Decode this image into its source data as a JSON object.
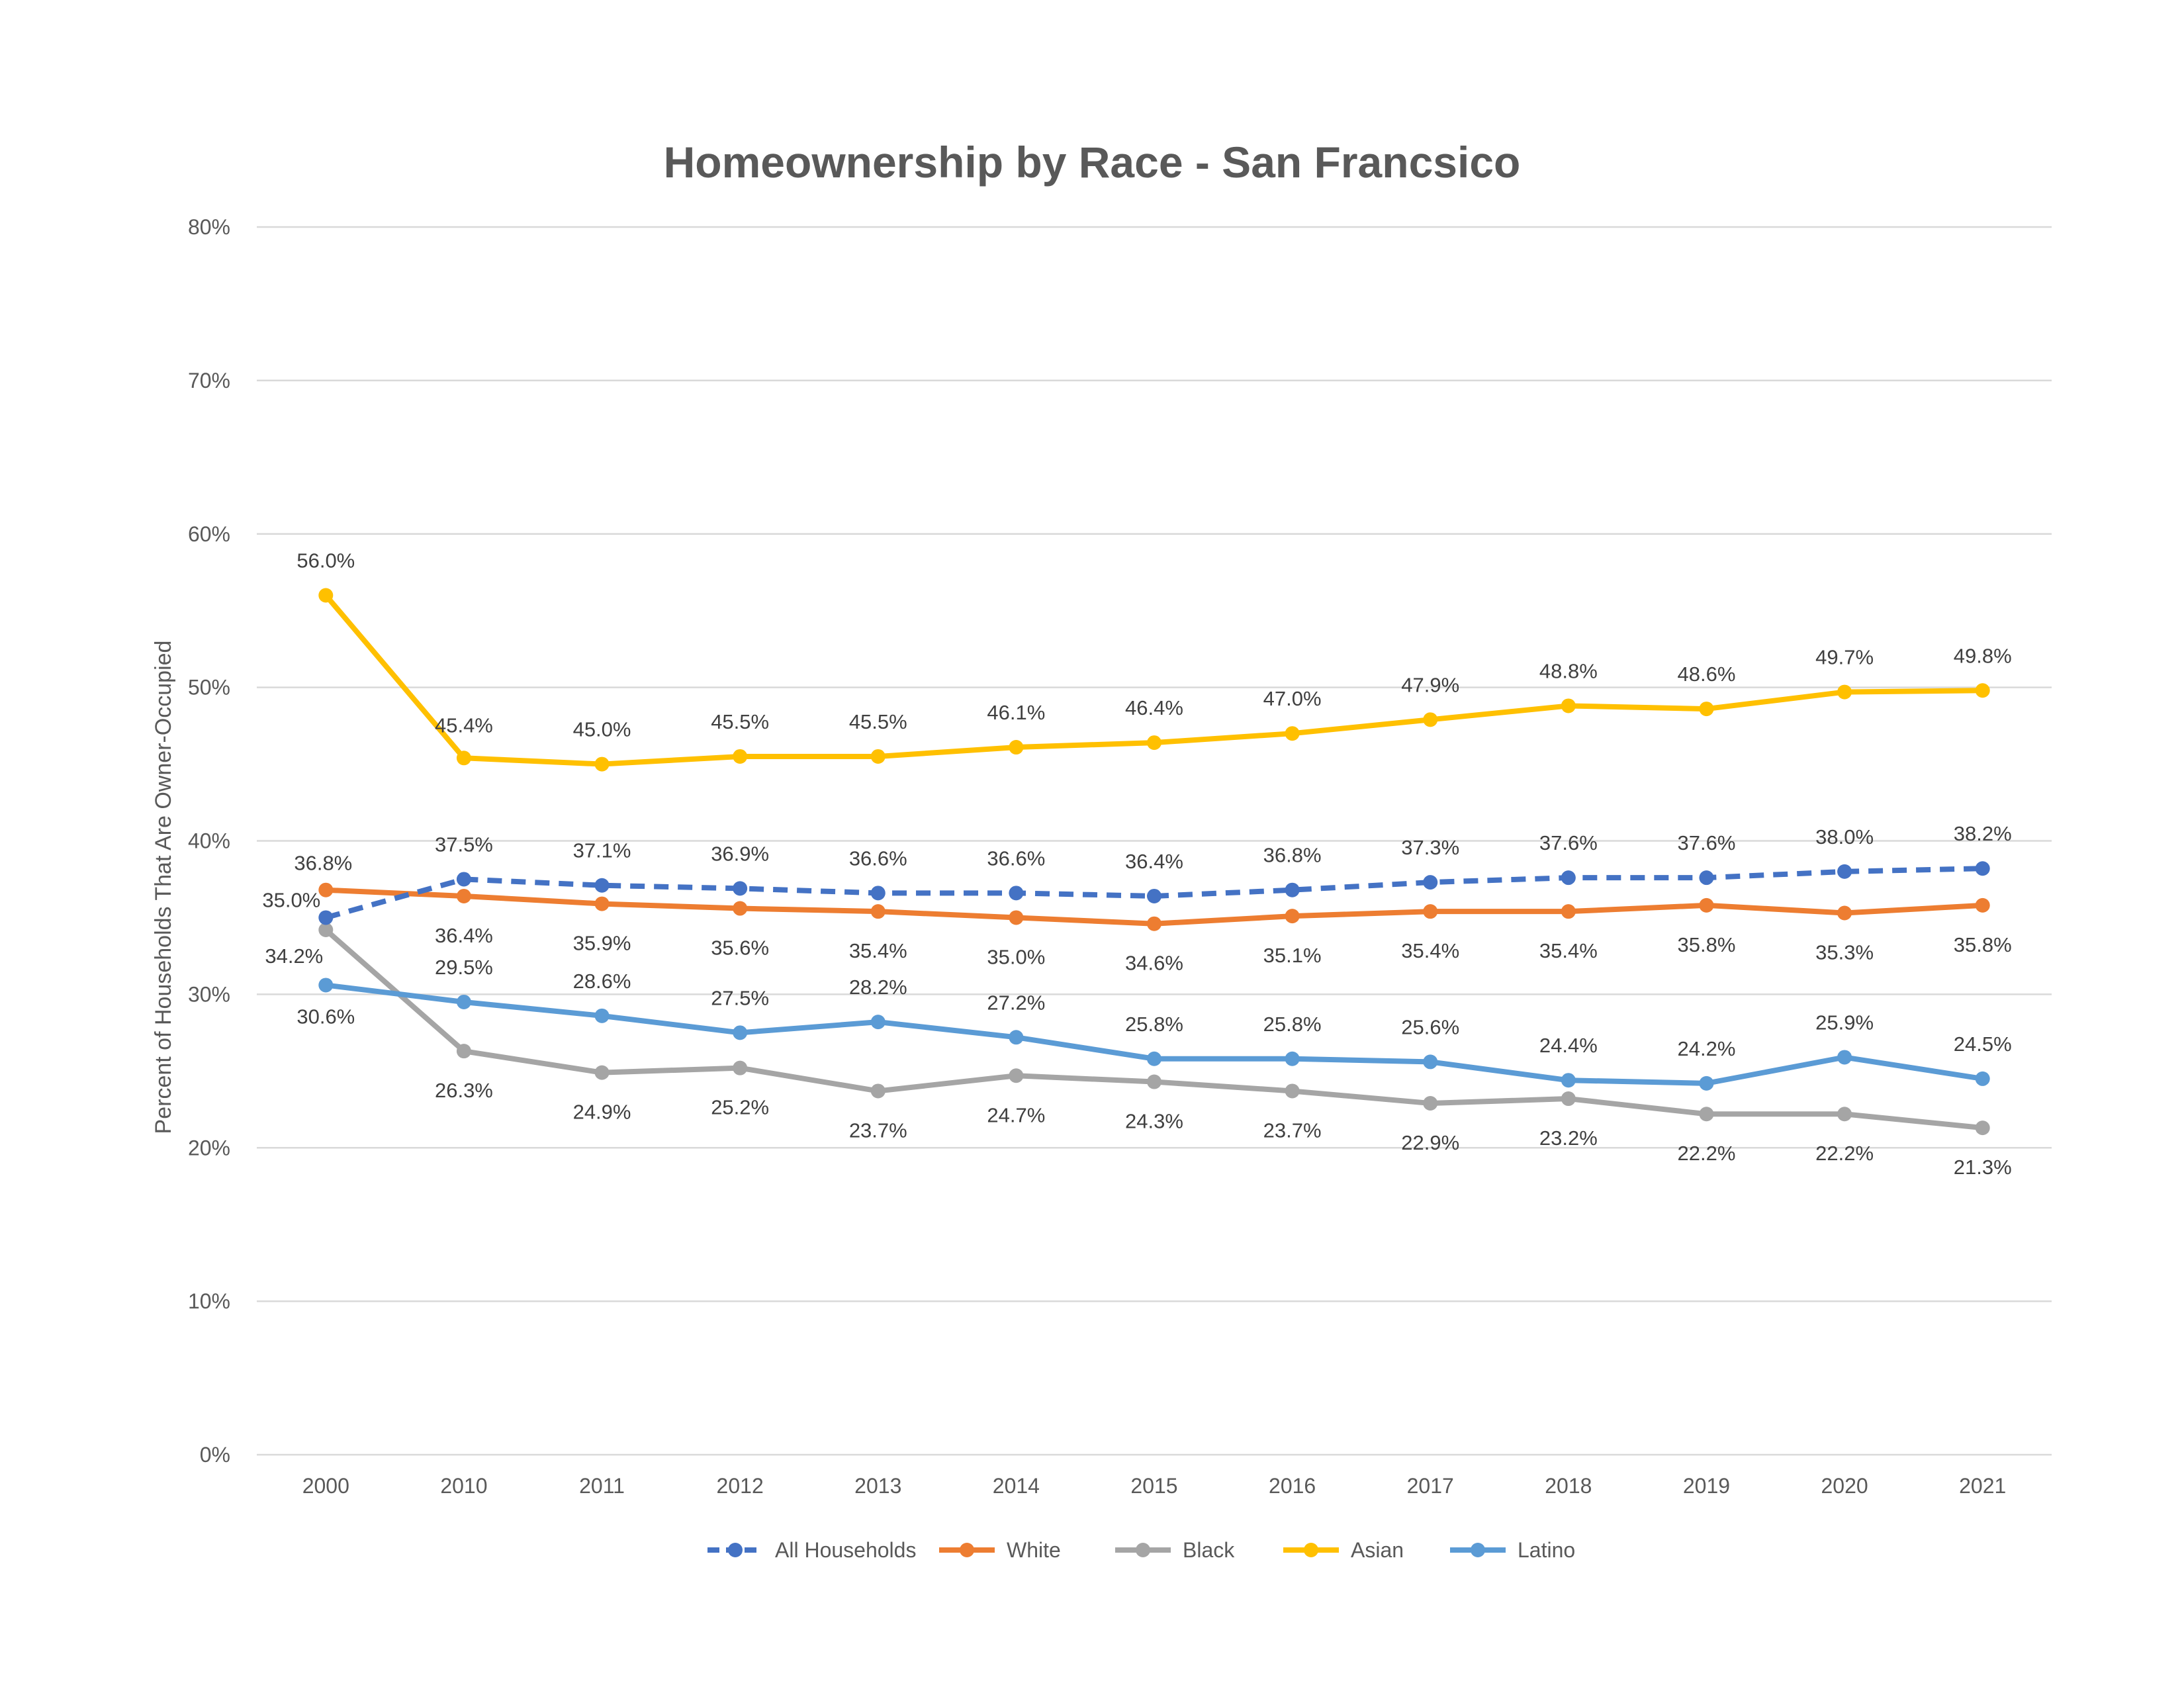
{
  "chart_data": {
    "type": "line",
    "title": "Homeownership by Race - San Francsico",
    "xlabel": "",
    "ylabel": "Percent of Households That Are Owner-Occupied",
    "ylim": [
      0,
      80
    ],
    "y_tick_labels": [
      "0%",
      "10%",
      "20%",
      "30%",
      "40%",
      "50%",
      "60%",
      "70%",
      "80%"
    ],
    "grid": true,
    "legend_position": "bottom",
    "categories": [
      "2000",
      "2010",
      "2011",
      "2012",
      "2013",
      "2014",
      "2015",
      "2016",
      "2017",
      "2018",
      "2019",
      "2020",
      "2021"
    ],
    "series": [
      {
        "name": "All Households",
        "color": "#4472C4",
        "dashed": true,
        "values": [
          35.0,
          37.5,
          37.1,
          36.9,
          36.6,
          36.6,
          36.4,
          36.8,
          37.3,
          37.6,
          37.6,
          38.0,
          38.2
        ],
        "labels": [
          "35.0%",
          "37.5%",
          "37.1%",
          "36.9%",
          "36.6%",
          "36.6%",
          "36.4%",
          "36.8%",
          "37.3%",
          "37.6%",
          "37.6%",
          "38.0%",
          "38.2%"
        ]
      },
      {
        "name": "White",
        "color": "#ED7D31",
        "dashed": false,
        "values": [
          36.8,
          36.4,
          35.9,
          35.6,
          35.4,
          35.0,
          34.6,
          35.1,
          35.4,
          35.4,
          35.8,
          35.3,
          35.8
        ],
        "labels": [
          "36.8%",
          "36.4%",
          "35.9%",
          "35.6%",
          "35.4%",
          "35.0%",
          "34.6%",
          "35.1%",
          "35.4%",
          "35.4%",
          "35.8%",
          "35.3%",
          "35.8%"
        ]
      },
      {
        "name": "Black",
        "color": "#A5A5A5",
        "dashed": false,
        "values": [
          34.2,
          26.3,
          24.9,
          25.2,
          23.7,
          24.7,
          24.3,
          23.7,
          22.9,
          23.2,
          22.2,
          22.2,
          21.3
        ],
        "labels": [
          "34.2%",
          "26.3%",
          "24.9%",
          "25.2%",
          "23.7%",
          "24.7%",
          "24.3%",
          "23.7%",
          "22.9%",
          "23.2%",
          "22.2%",
          "22.2%",
          "21.3%"
        ]
      },
      {
        "name": "Asian",
        "color": "#FFC000",
        "dashed": false,
        "values": [
          56.0,
          45.4,
          45.0,
          45.5,
          45.5,
          46.1,
          46.4,
          47.0,
          47.9,
          48.8,
          48.6,
          49.7,
          49.8
        ],
        "labels": [
          "56.0%",
          "45.4%",
          "45.0%",
          "45.5%",
          "45.5%",
          "46.1%",
          "46.4%",
          "47.0%",
          "47.9%",
          "48.8%",
          "48.6%",
          "49.7%",
          "49.8%"
        ]
      },
      {
        "name": "Latino",
        "color": "#5B9BD5",
        "dashed": false,
        "values": [
          30.6,
          29.5,
          28.6,
          27.5,
          28.2,
          27.2,
          25.8,
          25.8,
          25.6,
          24.4,
          24.2,
          25.9,
          24.5
        ],
        "labels": [
          "30.6%",
          "29.5%",
          "28.6%",
          "27.5%",
          "28.2%",
          "27.2%",
          "25.8%",
          "25.8%",
          "25.6%",
          "24.4%",
          "24.2%",
          "25.9%",
          "24.5%"
        ]
      }
    ]
  }
}
